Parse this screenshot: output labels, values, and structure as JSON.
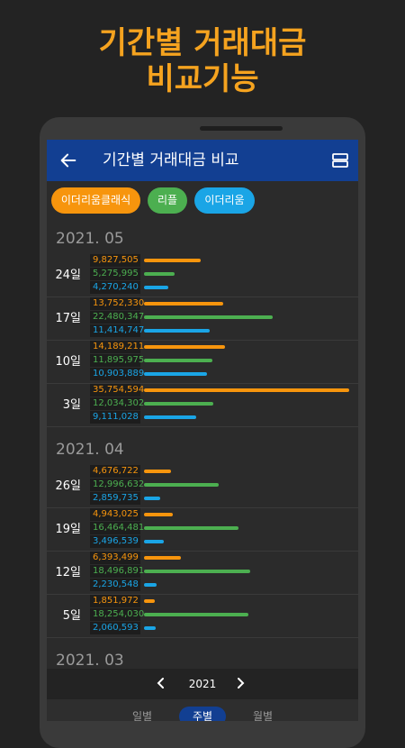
{
  "headline": {
    "line1": "기간별 거래대금",
    "line2": "비교기능"
  },
  "appbar": {
    "title": "기간별 거래대금 비교",
    "back_icon": "back-arrow-icon",
    "menu_icon": "list-view-icon"
  },
  "coins": [
    {
      "name": "이더리움클래식",
      "color": "#f7950d"
    },
    {
      "name": "리플",
      "color": "#4caf50"
    },
    {
      "name": "이더리움",
      "color": "#1aa5e6"
    }
  ],
  "max_value": 35754594,
  "months": [
    {
      "label": "2021. 05",
      "weeks": [
        {
          "day": "24일",
          "values": [
            "9,827,505",
            "5,275,995",
            "4,270,240"
          ],
          "raw": [
            9827505,
            5275995,
            4270240
          ]
        },
        {
          "day": "17일",
          "values": [
            "13,752,330",
            "22,480,347",
            "11,414,747"
          ],
          "raw": [
            13752330,
            22480347,
            11414747
          ]
        },
        {
          "day": "10일",
          "values": [
            "14,189,211",
            "11,895,975",
            "10,903,889"
          ],
          "raw": [
            14189211,
            11895975,
            10903889
          ]
        },
        {
          "day": "3일",
          "values": [
            "35,754,594",
            "12,034,302",
            "9,111,028"
          ],
          "raw": [
            35754594,
            12034302,
            9111028
          ]
        }
      ]
    },
    {
      "label": "2021. 04",
      "weeks": [
        {
          "day": "26일",
          "values": [
            "4,676,722",
            "12,996,632",
            "2,859,735"
          ],
          "raw": [
            4676722,
            12996632,
            2859735
          ]
        },
        {
          "day": "19일",
          "values": [
            "4,943,025",
            "16,464,481",
            "3,496,539"
          ],
          "raw": [
            4943025,
            16464481,
            3496539
          ]
        },
        {
          "day": "12일",
          "values": [
            "6,393,499",
            "18,496,891",
            "2,230,548"
          ],
          "raw": [
            6393499,
            18496891,
            2230548
          ]
        },
        {
          "day": "5일",
          "values": [
            "1,851,972",
            "18,254,030",
            "2,060,593"
          ],
          "raw": [
            1851972,
            18254030,
            2060593
          ]
        }
      ]
    },
    {
      "label": "2021. 03",
      "weeks": []
    }
  ],
  "year_nav": {
    "year": "2021",
    "prev_icon": "chevron-left-icon",
    "next_icon": "chevron-right-icon"
  },
  "period_tabs": [
    {
      "label": "일별",
      "active": false
    },
    {
      "label": "주별",
      "active": true
    },
    {
      "label": "월별",
      "active": false
    }
  ]
}
